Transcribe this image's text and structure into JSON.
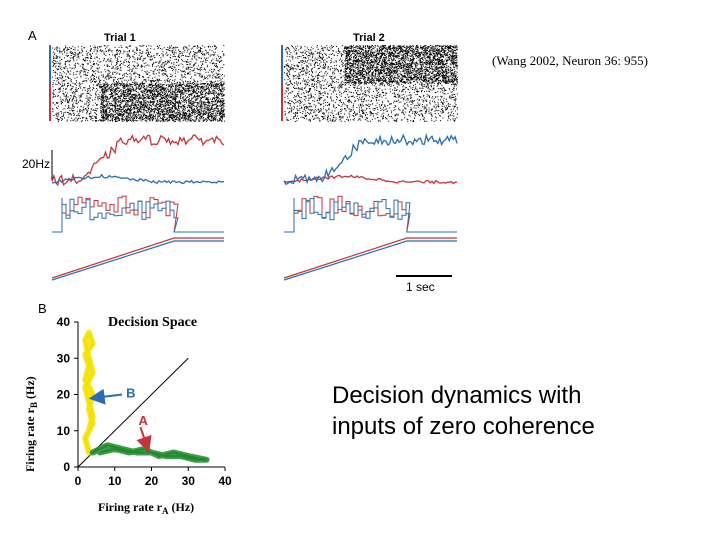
{
  "slide": {
    "citation": "(Wang 2002, Neuron 36: 955)",
    "caption_line1": "Decision dynamics with",
    "caption_line2": "inputs of zero coherence"
  },
  "colors": {
    "red": "#c8323a",
    "blue": "#2a6db4",
    "yellow": "#f2e200",
    "green": "#1f8a2e",
    "raster": "#000000"
  },
  "panel_a": {
    "label": "A",
    "scale_rate": "20Hz",
    "scale_time": "1 sec",
    "trials": [
      {
        "title": "Trial 1",
        "winner": "red",
        "switch_time_frac": 0.28
      },
      {
        "title": "Trial 2",
        "winner": "blue",
        "switch_time_frac": 0.35
      }
    ]
  },
  "chart_data": {
    "type": "line",
    "label": "B",
    "title": "Decision Space",
    "xlabel_main": "Firing rate r",
    "xlabel_sub": "A",
    "xlabel_unit": " (Hz)",
    "ylabel_main": "Firing rate r",
    "ylabel_sub": "B",
    "ylabel_unit": " (Hz)",
    "xlim": [
      0,
      40
    ],
    "ylim": [
      0,
      40
    ],
    "xticks": [
      0,
      10,
      20,
      30,
      40
    ],
    "yticks": [
      0,
      10,
      20,
      30,
      40
    ],
    "diagonal": [
      [
        0,
        0
      ],
      [
        30,
        30
      ]
    ],
    "arrows": [
      {
        "name": "B",
        "color": "blue",
        "from": [
          12,
          20
        ],
        "to": [
          4,
          19
        ]
      },
      {
        "name": "A",
        "color": "red",
        "from": [
          17,
          11
        ],
        "to": [
          19,
          5
        ]
      }
    ],
    "series": [
      {
        "color": "yellow",
        "points": [
          [
            3,
            4
          ],
          [
            2,
            8
          ],
          [
            4,
            12
          ],
          [
            3,
            16
          ],
          [
            4,
            20
          ],
          [
            2,
            24
          ],
          [
            3,
            28
          ],
          [
            2,
            31
          ],
          [
            4,
            34
          ],
          [
            3,
            37
          ],
          [
            2,
            35
          ],
          [
            3,
            30
          ],
          [
            4,
            26
          ],
          [
            2,
            22
          ],
          [
            3,
            18
          ],
          [
            4,
            14
          ],
          [
            3,
            10
          ]
        ]
      },
      {
        "color": "green",
        "points": [
          [
            4,
            4
          ],
          [
            8,
            6
          ],
          [
            12,
            5
          ],
          [
            16,
            4
          ],
          [
            20,
            4
          ],
          [
            24,
            3
          ],
          [
            28,
            3
          ],
          [
            32,
            2
          ],
          [
            35,
            2
          ],
          [
            30,
            3
          ],
          [
            26,
            4
          ],
          [
            22,
            3
          ],
          [
            18,
            5
          ],
          [
            14,
            4
          ],
          [
            10,
            5
          ],
          [
            6,
            4
          ]
        ]
      }
    ]
  }
}
